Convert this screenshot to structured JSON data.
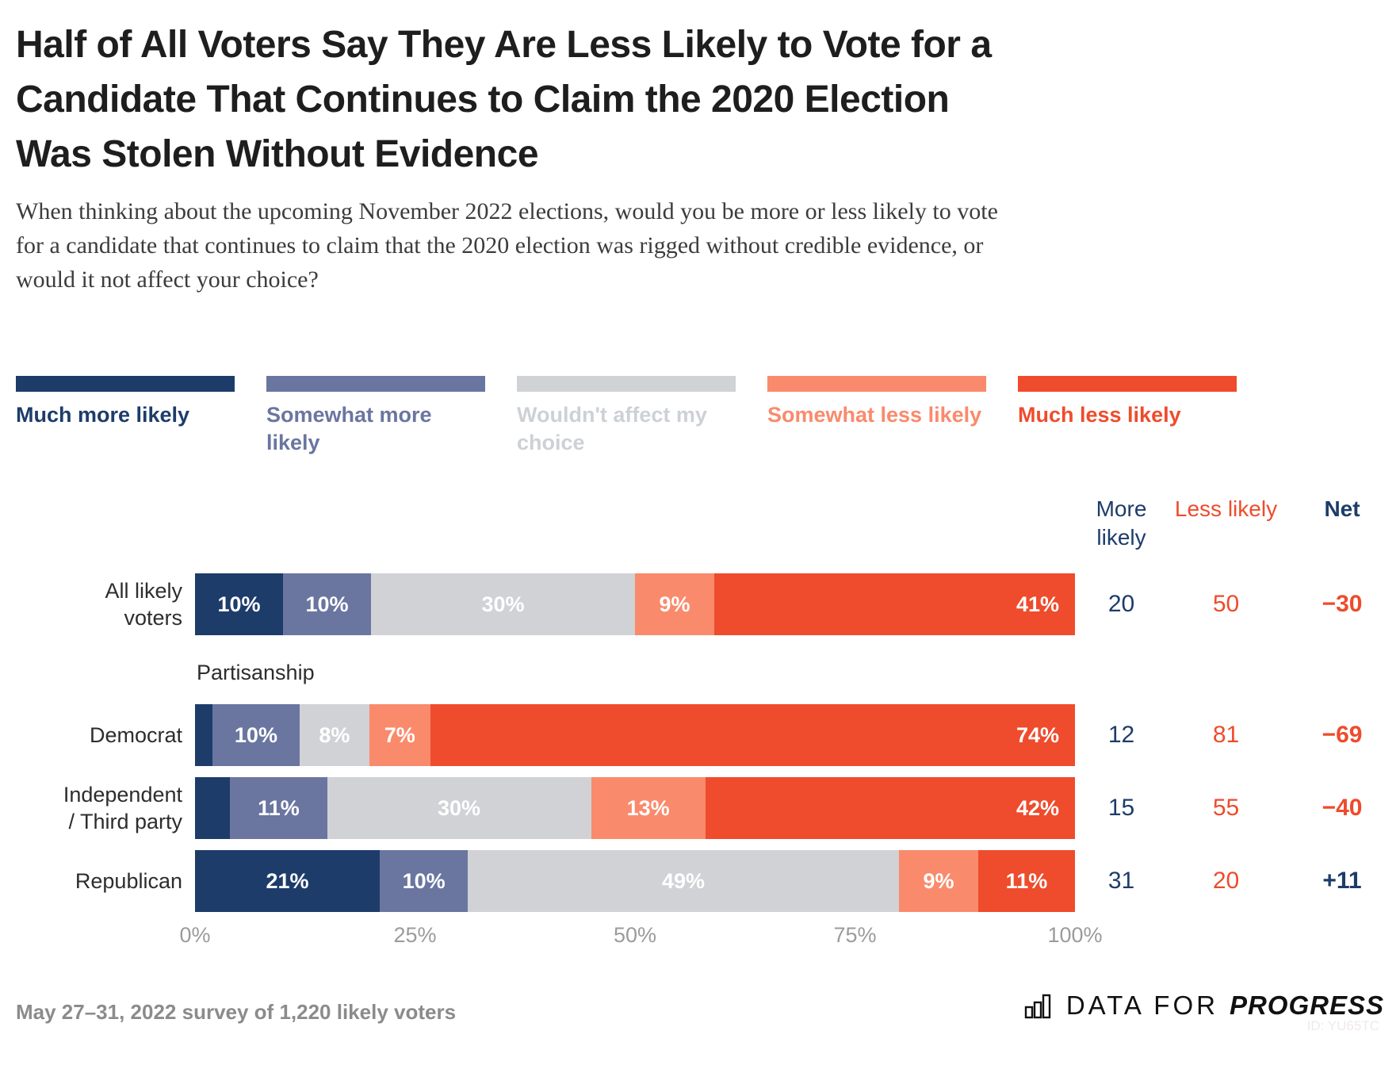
{
  "title_lines": [
    "Half of All Voters Say They Are Less Likely to Vote for a",
    "Candidate That Continues to Claim the 2020 Election",
    "Was Stolen Without Evidence"
  ],
  "title_full": "Half of All Voters Say They Are Less Likely to Vote for a Candidate That Continues to Claim the 2020 Election Was Stolen Without Evidence",
  "subtitle_lines": [
    "When thinking about the upcoming November 2022 elections, would you be more or less likely to vote",
    "for a candidate that continues to claim that the 2020 election was rigged without credible evidence, or",
    "would it not affect your choice?"
  ],
  "colors": {
    "series": [
      "#1d3c6a",
      "#6a76a0",
      "#d0d2d6",
      "#fa8a6c",
      "#ee4c2c"
    ],
    "navy_text": "#1d3c6a",
    "red_text": "#ee4c2c",
    "neutral_label_text": "#cdd1d6"
  },
  "legend": [
    {
      "label": "Much more likely",
      "color": "#1d3c6a",
      "text_color": "#1d3c6a"
    },
    {
      "label": "Somewhat more likely",
      "color": "#6a76a0",
      "text_color": "#6a76a0"
    },
    {
      "label": "Wouldn't affect my choice",
      "color": "#d0d2d6",
      "text_color": "#cdd1d6"
    },
    {
      "label": "Somewhat less likely",
      "color": "#fa8a6c",
      "text_color": "#fa8a6c"
    },
    {
      "label": "Much less likely",
      "color": "#ee4c2c",
      "text_color": "#ee4c2c"
    }
  ],
  "columns": {
    "more": "More likely",
    "less": "Less likely",
    "net": "Net"
  },
  "section_label": "Partisanship",
  "chart_data": {
    "type": "bar",
    "stacked": true,
    "orientation": "horizontal",
    "xlim": [
      0,
      100
    ],
    "x_ticks": [
      "0%",
      "25%",
      "50%",
      "75%",
      "100%"
    ],
    "series_labels": [
      "Much more likely",
      "Somewhat more likely",
      "Wouldn't affect my choice",
      "Somewhat less likely",
      "Much less likely"
    ],
    "categories": [
      "All likely voters",
      "Democrat",
      "Independent / Third party",
      "Republican"
    ],
    "section_index": 1,
    "rows": [
      {
        "label": "All likely\nvoters",
        "segments": [
          {
            "value": 10,
            "label": "10%"
          },
          {
            "value": 10,
            "label": "10%"
          },
          {
            "value": 30,
            "label": "30%"
          },
          {
            "value": 9,
            "label": "9%"
          },
          {
            "value": 41,
            "label": "41%"
          }
        ],
        "more": "20",
        "less": "50",
        "net": "−30"
      },
      {
        "label": "Democrat",
        "segments": [
          {
            "value": 2,
            "label": ""
          },
          {
            "value": 10,
            "label": "10%"
          },
          {
            "value": 8,
            "label": "8%"
          },
          {
            "value": 7,
            "label": "7%"
          },
          {
            "value": 74,
            "label": "74%"
          }
        ],
        "more": "12",
        "less": "81",
        "net": "−69"
      },
      {
        "label": "Independent\n/ Third party",
        "segments": [
          {
            "value": 4,
            "label": ""
          },
          {
            "value": 11,
            "label": "11%"
          },
          {
            "value": 30,
            "label": "30%"
          },
          {
            "value": 13,
            "label": "13%"
          },
          {
            "value": 42,
            "label": "42%"
          }
        ],
        "more": "15",
        "less": "55",
        "net": "−40"
      },
      {
        "label": "Republican",
        "segments": [
          {
            "value": 21,
            "label": "21%"
          },
          {
            "value": 10,
            "label": "10%"
          },
          {
            "value": 49,
            "label": "49%"
          },
          {
            "value": 9,
            "label": "9%"
          },
          {
            "value": 11,
            "label": "11%"
          }
        ],
        "more": "31",
        "less": "20",
        "net": "+11"
      }
    ]
  },
  "footer": {
    "note": "May 27–31, 2022 survey of 1,220 likely voters",
    "logo_data_for": "DATA FOR",
    "logo_progress": "PROGRESS",
    "chart_id": "ID: YU65TC"
  }
}
